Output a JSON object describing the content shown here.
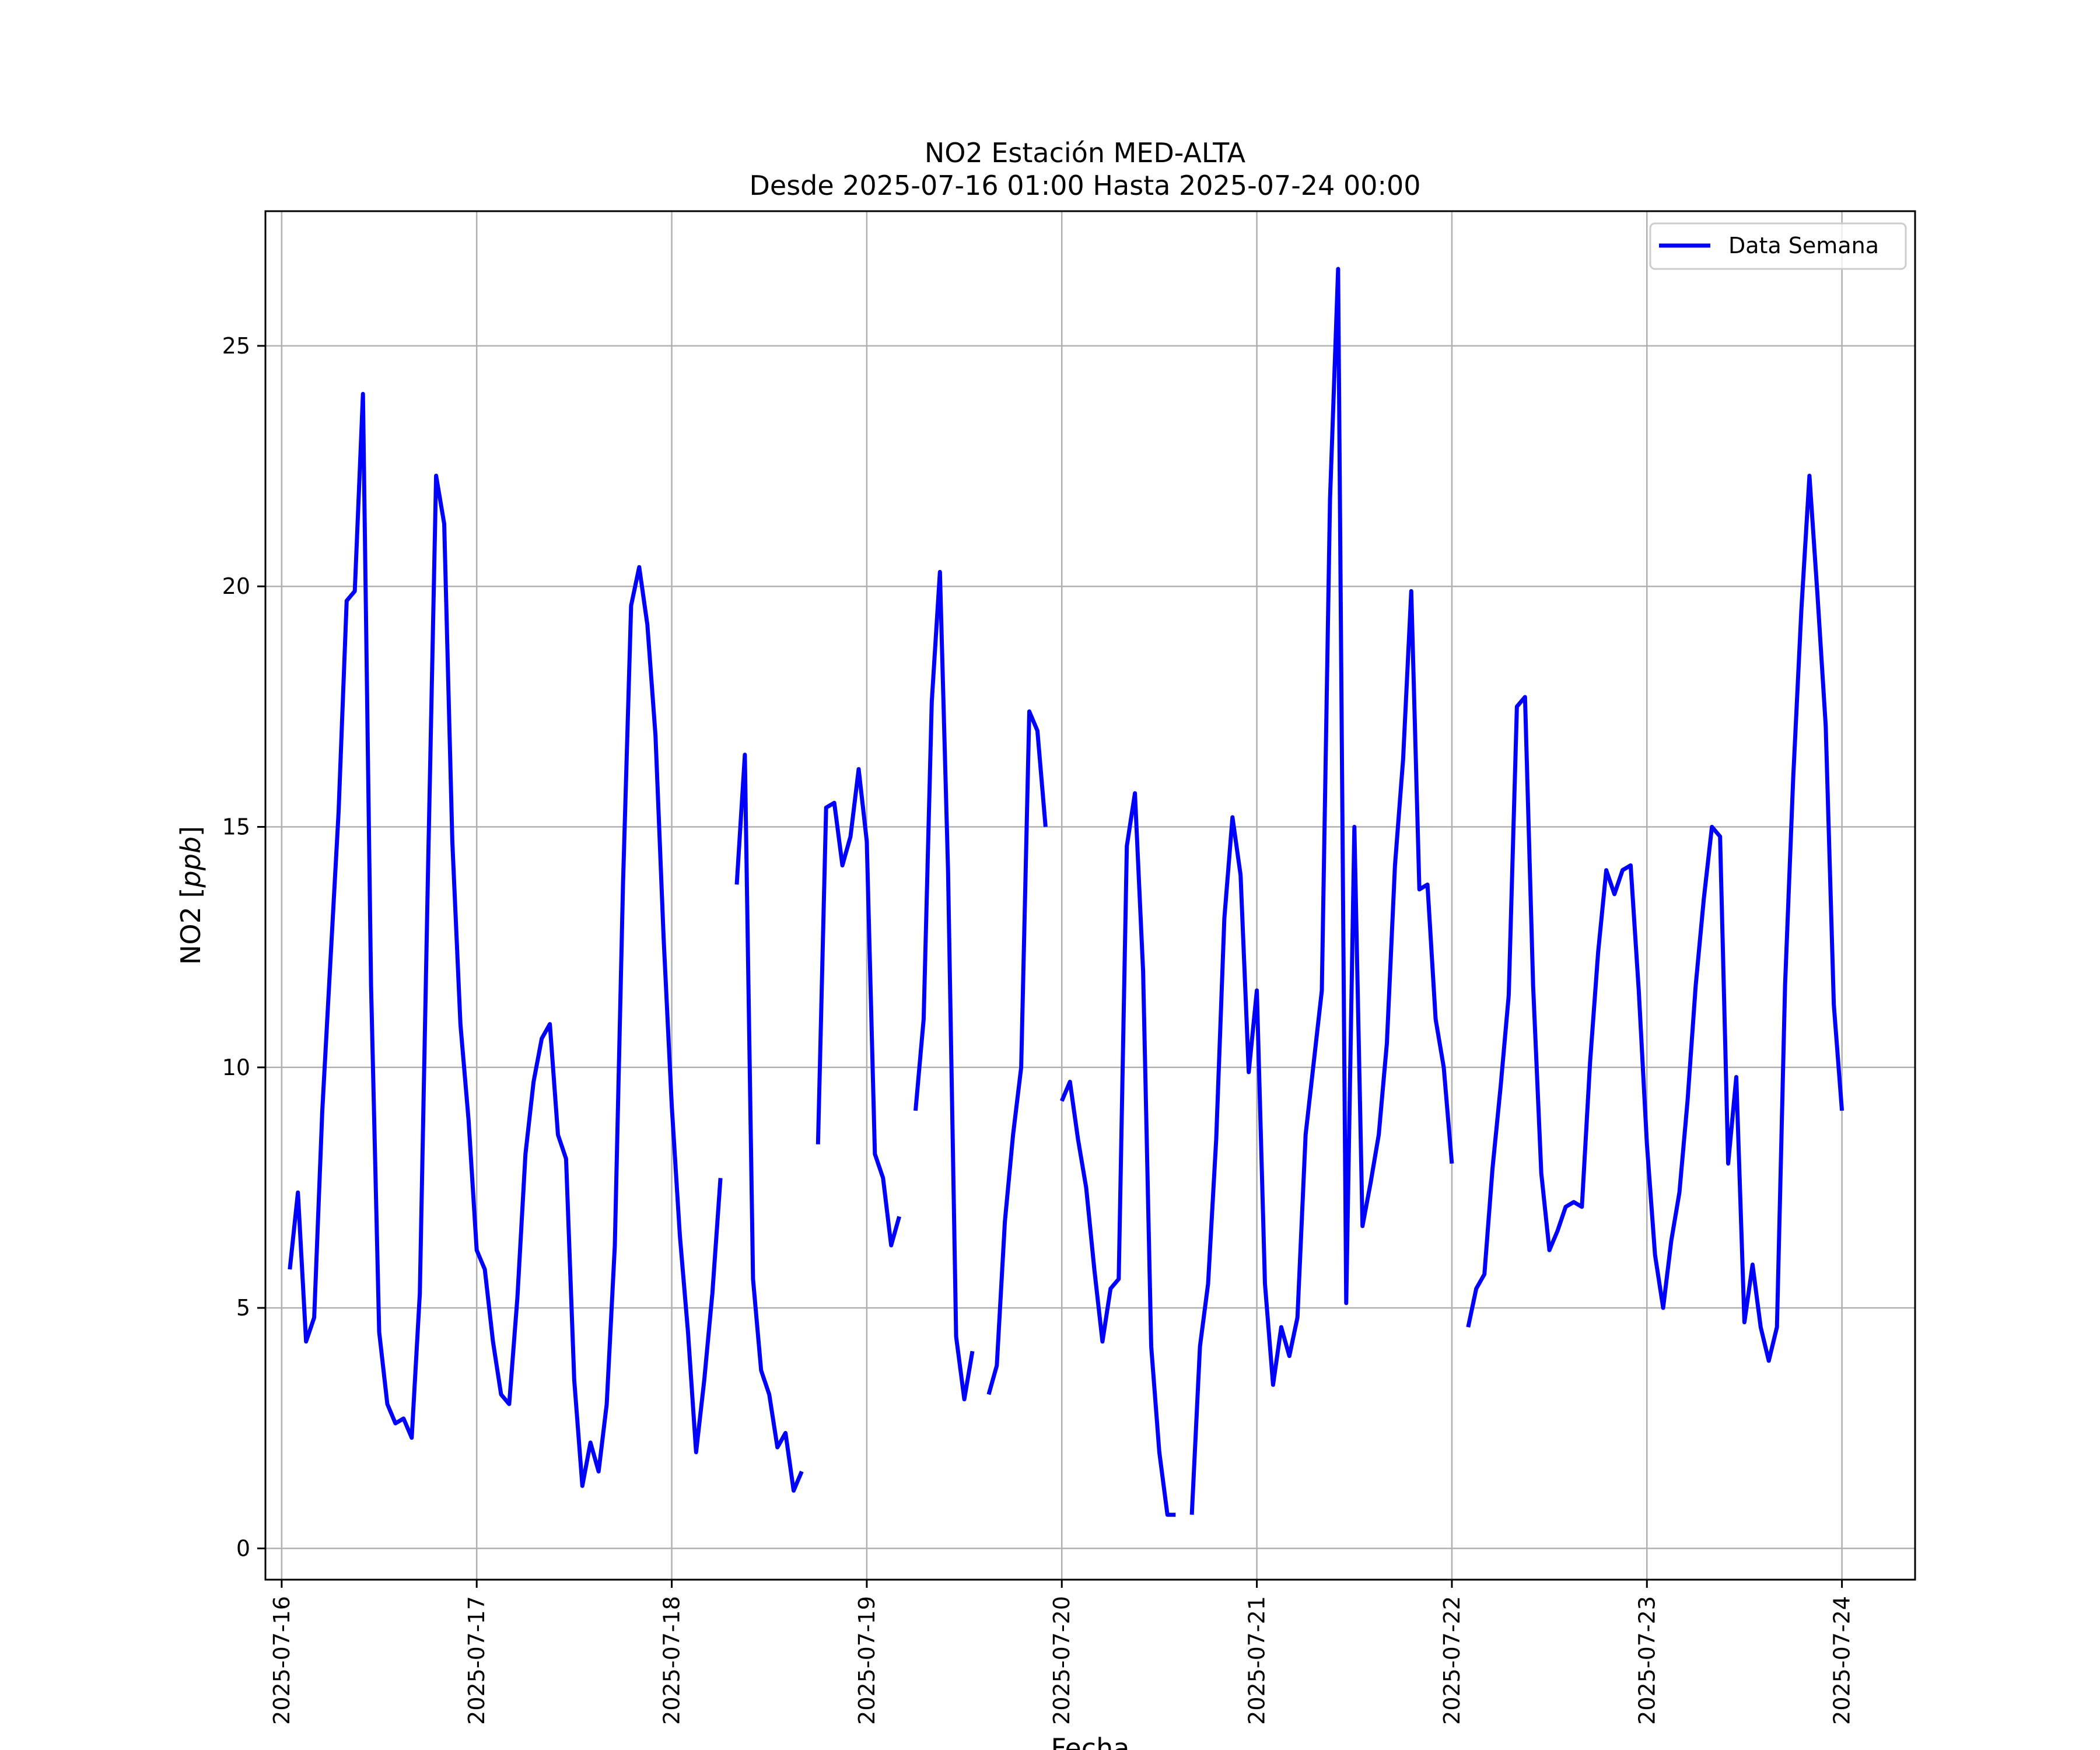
{
  "chart_data": {
    "type": "line",
    "title": "NO2 Estación MED-ALTA",
    "subtitle": "Desde 2025-07-16 01:00 Hasta 2025-07-24 00:00",
    "xlabel": "Fecha",
    "ylabel_main": "NO2 [",
    "ylabel_unit": "ppb",
    "ylabel_close": "]",
    "xlim": [
      "2025-07-15 22:00",
      "2025-07-24 09:00"
    ],
    "ylim": [
      -0.65,
      27.8
    ],
    "x_ticks": [
      "2025-07-16",
      "2025-07-17",
      "2025-07-18",
      "2025-07-19",
      "2025-07-20",
      "2025-07-21",
      "2025-07-22",
      "2025-07-23",
      "2025-07-24"
    ],
    "y_ticks": [
      0,
      5,
      10,
      15,
      20,
      25
    ],
    "grid": true,
    "legend_position": "top-right",
    "series": [
      {
        "name": "Data Semana",
        "color": "#0000ff",
        "segments": [
          {
            "start": "2025-07-16 01:00",
            "values": [
              5.8,
              7.4,
              4.3,
              4.8,
              9.1,
              12.2,
              15.3,
              19.7,
              19.9,
              24.0,
              11.7,
              4.5,
              3.0,
              2.6,
              2.7,
              2.3,
              5.3,
              14.0,
              22.3,
              21.3,
              14.7,
              10.9,
              8.9,
              6.2,
              5.8,
              4.3,
              3.2,
              3.0,
              5.2,
              8.2,
              9.7,
              10.6,
              10.9,
              8.6,
              8.1,
              3.5,
              1.3,
              2.2,
              1.6,
              3.0,
              6.3,
              13.8,
              19.6,
              20.4,
              19.2,
              16.9,
              12.7,
              9.2,
              6.5,
              4.5,
              2.0,
              3.5,
              5.3,
              7.7
            ]
          },
          {
            "start": "2025-07-18 08:00",
            "values": [
              13.8,
              16.5,
              5.6,
              3.7,
              3.2,
              2.1,
              2.4,
              1.2,
              1.6
            ]
          },
          {
            "start": "2025-07-18 18:00",
            "values": [
              8.4,
              15.4,
              15.5,
              14.2,
              14.8,
              16.2,
              14.7,
              8.2,
              7.7,
              6.3,
              6.9
            ]
          },
          {
            "start": "2025-07-19 06:00",
            "values": [
              9.1,
              11.0,
              17.6,
              20.3,
              14.1,
              4.4,
              3.1,
              4.1
            ]
          },
          {
            "start": "2025-07-19 15:00",
            "values": [
              3.2,
              3.8,
              6.8,
              8.6,
              10.0,
              17.4,
              17.0,
              15.0
            ]
          },
          {
            "start": "2025-07-20 00:00",
            "values": [
              9.3,
              9.7,
              8.5,
              7.5,
              5.8,
              4.3,
              5.4,
              5.6,
              14.6,
              15.7,
              12.0,
              4.2,
              2.0,
              0.7,
              0.7
            ]
          },
          {
            "start": "2025-07-20 16:00",
            "values": [
              0.7,
              4.2,
              5.5,
              8.5,
              13.1,
              15.2,
              14.0,
              9.9,
              11.6,
              5.5,
              3.4,
              4.6,
              4.0,
              4.8,
              8.6,
              10.1,
              11.6,
              21.8,
              26.6,
              5.1,
              15.0,
              6.7,
              7.6,
              8.6,
              10.5,
              14.2,
              16.4,
              19.9,
              13.7,
              13.8,
              11.0,
              10.0,
              8.0
            ]
          },
          {
            "start": "2025-07-22 02:00",
            "values": [
              4.6,
              5.4,
              5.7,
              7.9,
              9.6,
              11.5,
              17.5,
              17.7,
              11.7,
              7.8,
              6.2,
              6.6,
              7.1,
              7.2,
              7.1,
              10.1,
              12.4,
              14.1,
              13.6,
              14.1,
              14.2,
              11.6,
              8.4,
              6.1,
              5.0,
              6.4,
              7.4,
              9.3,
              11.7,
              13.5,
              15.0,
              14.8,
              8.0,
              9.8,
              4.7,
              5.9,
              4.6,
              3.9,
              4.6,
              11.7,
              16.0,
              19.5,
              22.3,
              19.8,
              17.1,
              11.3,
              9.1
            ]
          }
        ]
      }
    ]
  }
}
